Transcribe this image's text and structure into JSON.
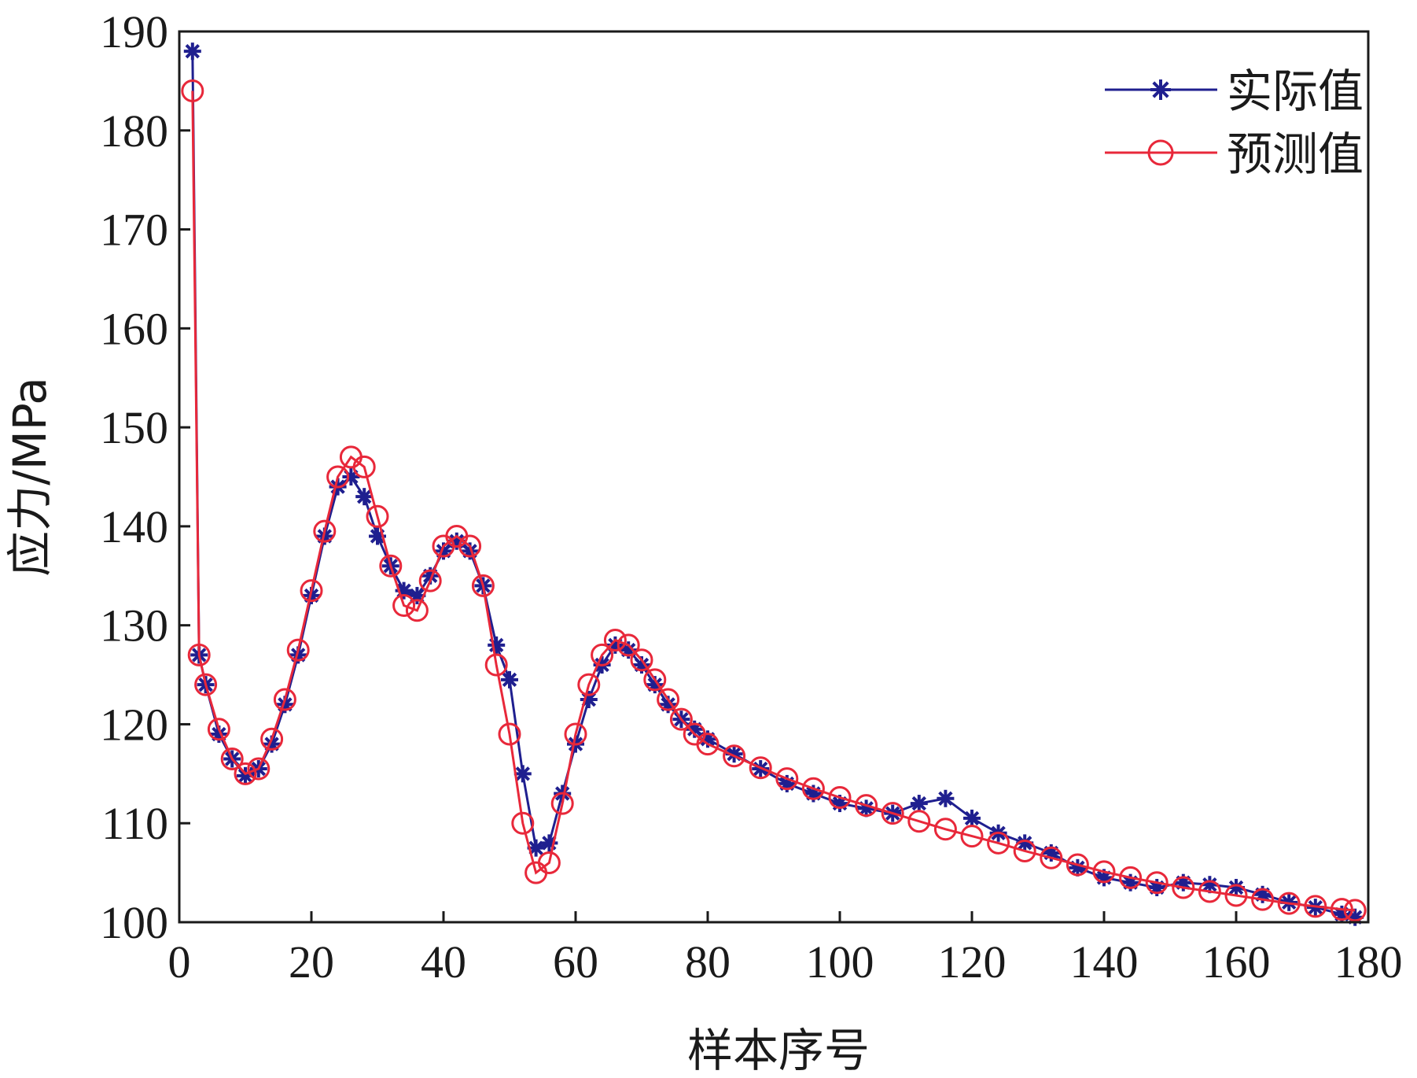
{
  "chart_data": {
    "type": "line",
    "xlabel": "样本序号",
    "ylabel": "应力/MPa",
    "xlim": [
      0,
      180
    ],
    "ylim": [
      100,
      190
    ],
    "xticks": [
      "0",
      "20",
      "40",
      "60",
      "80",
      "100",
      "120",
      "140",
      "160",
      "180"
    ],
    "yticks": [
      "100",
      "110",
      "120",
      "130",
      "140",
      "150",
      "160",
      "170",
      "180",
      "190"
    ],
    "legend_position": "top-right",
    "grid": false,
    "series": [
      {
        "name": "实际值",
        "color": "#1f1f8f",
        "marker": "asterisk",
        "x": [
          2,
          3,
          4,
          6,
          8,
          10,
          12,
          14,
          16,
          18,
          20,
          22,
          24,
          26,
          28,
          30,
          32,
          34,
          36,
          38,
          40,
          42,
          44,
          46,
          48,
          50,
          52,
          54,
          56,
          58,
          60,
          62,
          64,
          66,
          68,
          70,
          72,
          74,
          76,
          78,
          80,
          84,
          88,
          92,
          96,
          100,
          104,
          108,
          112,
          116,
          120,
          124,
          128,
          132,
          136,
          140,
          144,
          148,
          152,
          156,
          160,
          164,
          168,
          172,
          176,
          178
        ],
        "y": [
          188,
          127,
          124,
          119,
          116.5,
          114.8,
          115.5,
          118,
          122,
          127,
          133,
          139,
          144,
          145,
          143,
          139,
          136,
          133.5,
          133,
          135,
          137.5,
          138.5,
          137.5,
          134,
          128,
          124.5,
          115,
          107.5,
          108,
          113,
          118,
          122.5,
          126,
          128,
          127.5,
          126,
          124,
          122,
          120.5,
          119.5,
          118.5,
          117,
          115.5,
          114,
          113,
          112,
          111.5,
          111,
          112,
          112.5,
          110.5,
          109,
          108,
          107,
          105.5,
          104.5,
          104,
          103.5,
          104,
          103.8,
          103.5,
          102.8,
          102,
          101.5,
          100.8,
          100.5
        ]
      },
      {
        "name": "预测值",
        "color": "#e8283a",
        "marker": "circle",
        "x": [
          2,
          3,
          4,
          6,
          8,
          10,
          12,
          14,
          16,
          18,
          20,
          22,
          24,
          26,
          28,
          30,
          32,
          34,
          36,
          38,
          40,
          42,
          44,
          46,
          48,
          50,
          52,
          54,
          56,
          58,
          60,
          62,
          64,
          66,
          68,
          70,
          72,
          74,
          76,
          78,
          80,
          84,
          88,
          92,
          96,
          100,
          104,
          108,
          112,
          116,
          120,
          124,
          128,
          132,
          136,
          140,
          144,
          148,
          152,
          156,
          160,
          164,
          168,
          172,
          176,
          178
        ],
        "y": [
          184,
          127,
          124,
          119.5,
          116.5,
          115,
          115.5,
          118.5,
          122.5,
          127.5,
          133.5,
          139.5,
          145,
          147,
          146,
          141,
          136,
          132,
          131.5,
          134.5,
          138,
          139,
          138,
          134,
          126,
          119,
          110,
          105,
          106,
          112,
          119,
          124,
          127,
          128.5,
          128,
          126.5,
          124.5,
          122.5,
          120.5,
          119,
          118,
          116.8,
          115.6,
          114.5,
          113.5,
          112.6,
          111.8,
          111,
          110.2,
          109.4,
          108.7,
          108,
          107.2,
          106.5,
          105.8,
          105.1,
          104.5,
          104,
          103.5,
          103.1,
          102.7,
          102.3,
          101.9,
          101.6,
          101.3,
          101.2
        ]
      }
    ]
  }
}
